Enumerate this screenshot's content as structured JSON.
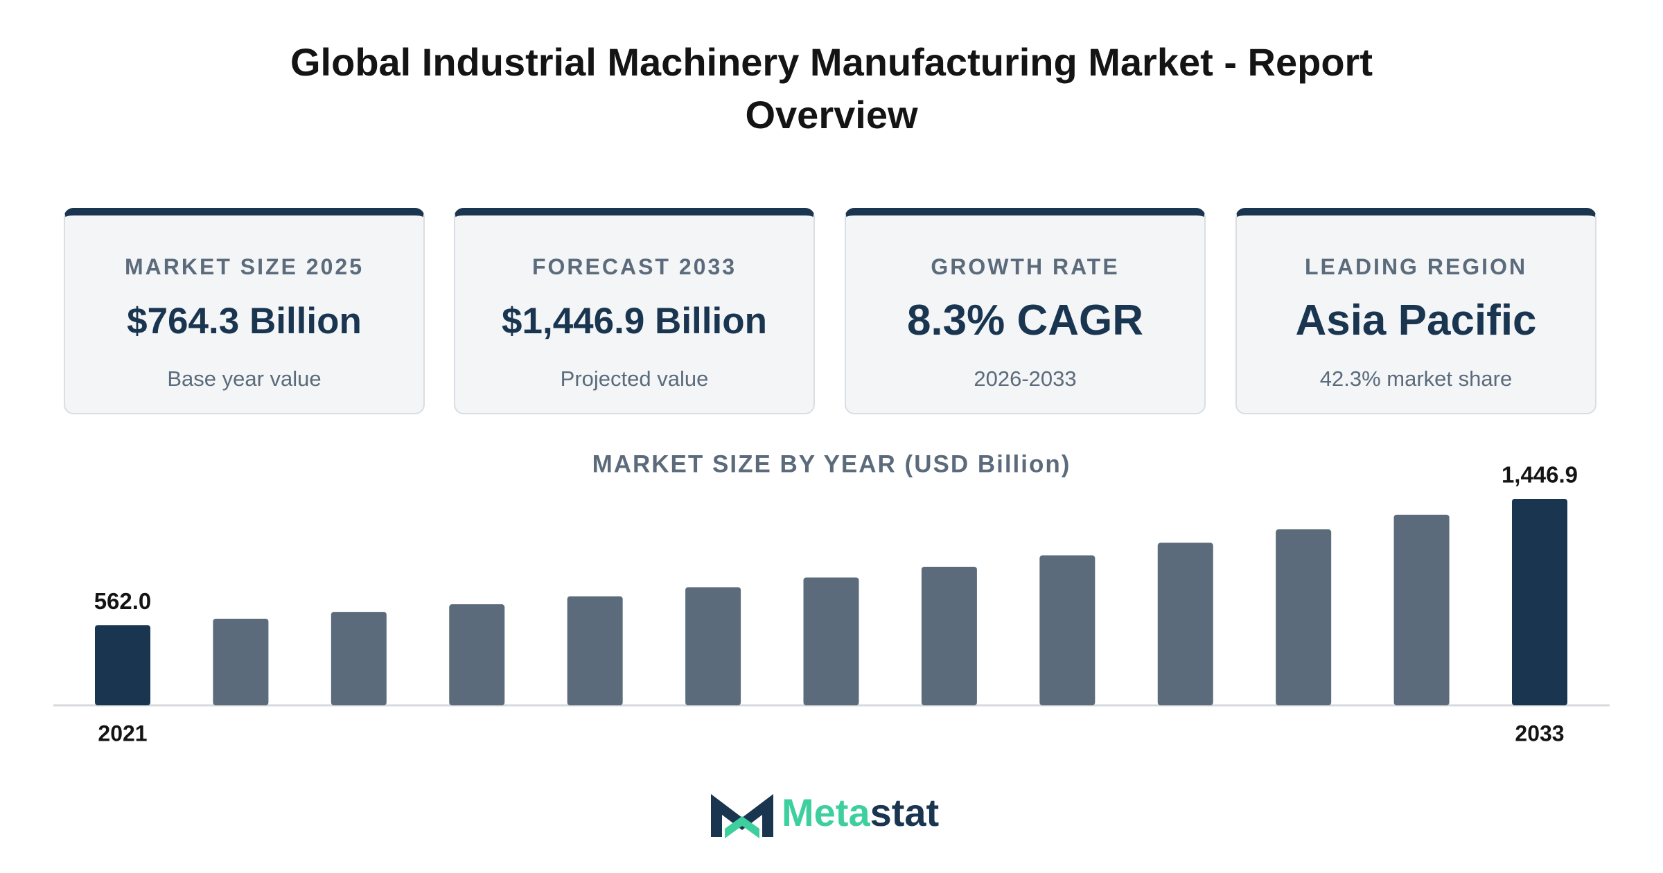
{
  "header": {
    "title": "Global Industrial Machinery Manufacturing Market - Report Overview"
  },
  "cards": [
    {
      "label": "MARKET SIZE 2025",
      "value": "$764.3 Billion",
      "sub": "Base year value"
    },
    {
      "label": "FORECAST 2033",
      "value": "$1,446.9 Billion",
      "sub": "Projected value"
    },
    {
      "label": "GROWTH RATE",
      "value": "8.3% CAGR",
      "sub": "2026-2033"
    },
    {
      "label": "LEADING REGION",
      "value": "Asia Pacific",
      "sub": "42.3% market share"
    }
  ],
  "chart_data": {
    "type": "bar",
    "title": "MARKET SIZE BY YEAR (USD Billion)",
    "categories": [
      "2021",
      null,
      null,
      null,
      null,
      null,
      null,
      null,
      null,
      null,
      null,
      null,
      "2033"
    ],
    "values": [
      562.0,
      607,
      655,
      708,
      764.3,
      828,
      896,
      971,
      1051,
      1139,
      1233,
      1336,
      1446.9
    ],
    "value_labels": [
      "562.0",
      null,
      null,
      null,
      null,
      null,
      null,
      null,
      null,
      null,
      null,
      null,
      "1,446.9"
    ],
    "colors": [
      "#1a3550",
      "#5b6b7b",
      "#5b6b7b",
      "#5b6b7b",
      "#5b6b7b",
      "#5b6b7b",
      "#5b6b7b",
      "#5b6b7b",
      "#5b6b7b",
      "#5b6b7b",
      "#5b6b7b",
      "#5b6b7b",
      "#1a3550"
    ]
  },
  "logo": {
    "part_1": "Meta",
    "part_2": "stat"
  }
}
